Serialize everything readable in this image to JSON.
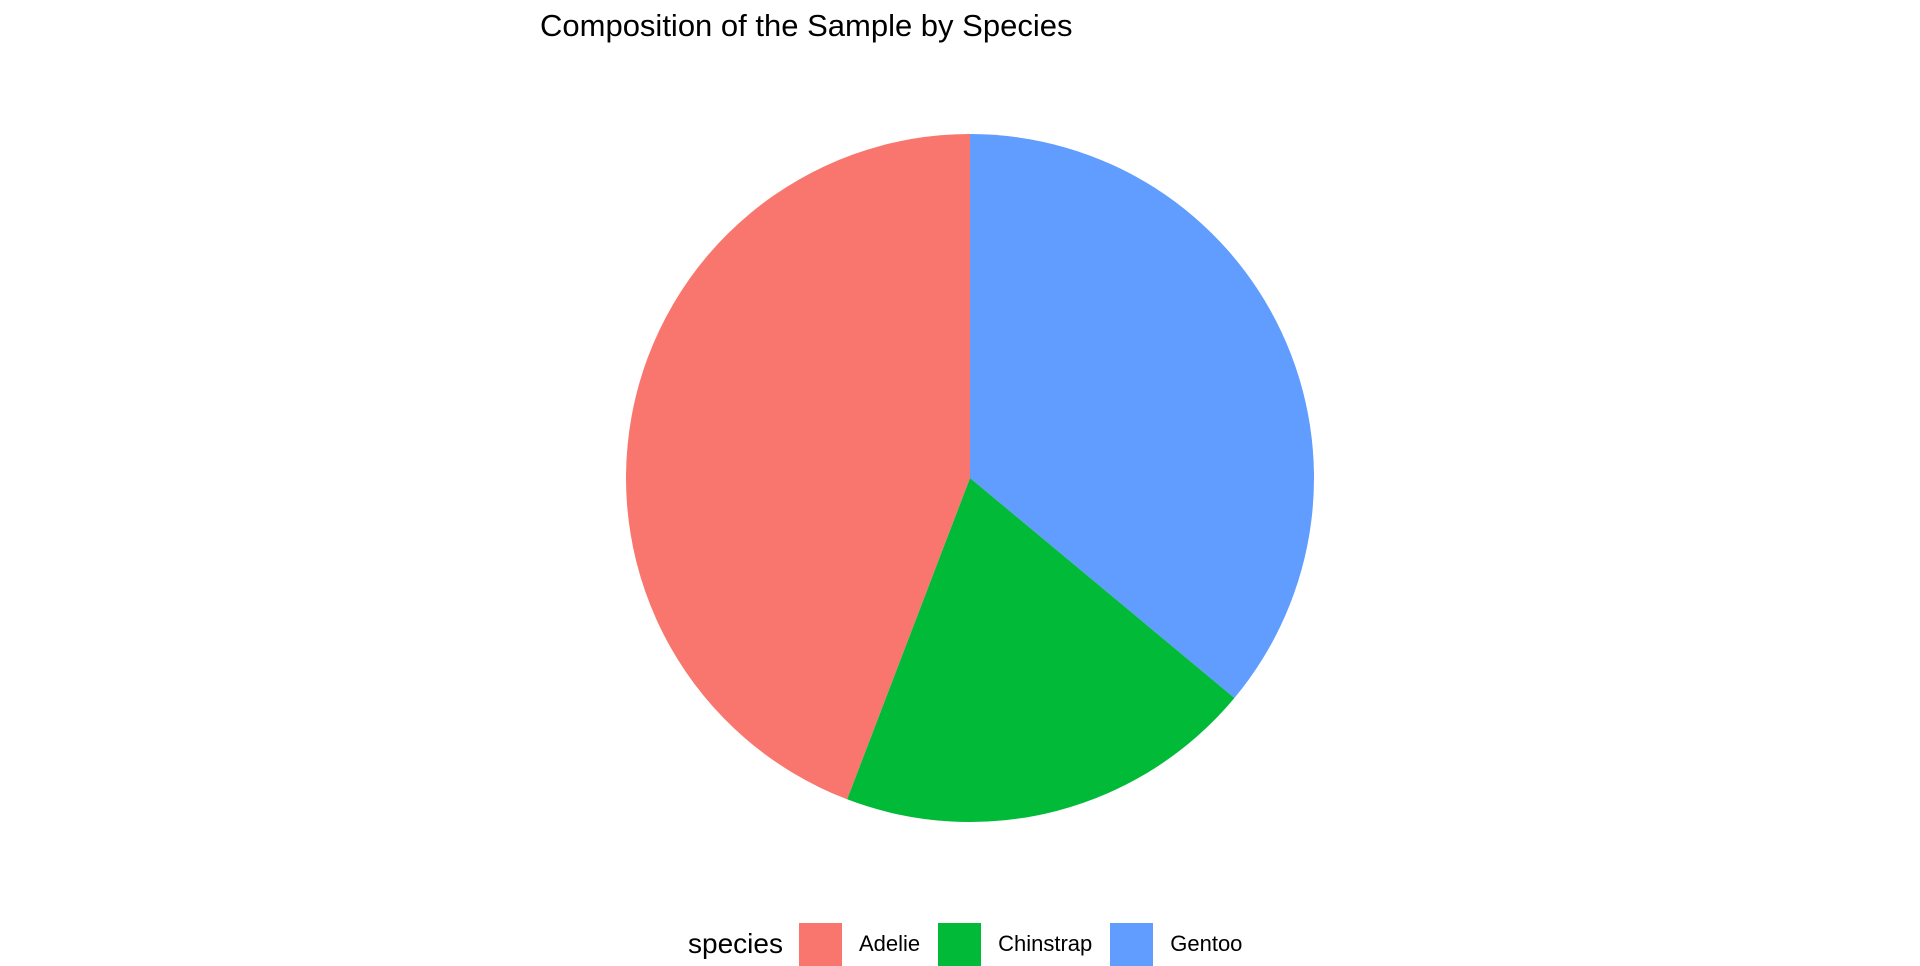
{
  "chart_data": {
    "type": "pie",
    "title": "Composition of the Sample by Species",
    "legend_title": "species",
    "legend_position": "bottom",
    "categories": [
      "Adelie",
      "Chinstrap",
      "Gentoo"
    ],
    "values": [
      152,
      68,
      124
    ],
    "colors": [
      "#F8766D",
      "#00BA38",
      "#619CFF"
    ]
  }
}
